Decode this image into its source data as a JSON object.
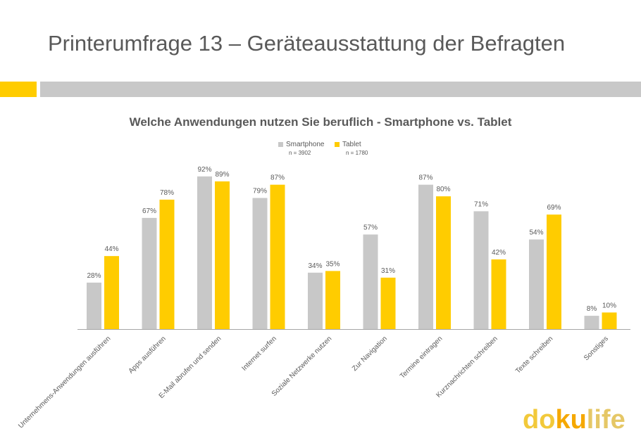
{
  "slide": {
    "title": "Printerumfrage 13 – Geräteausstattung der Befragten"
  },
  "colors": {
    "smartphone": "#c8c8c8",
    "tablet": "#ffcc00",
    "band_gray": "#c8c8c8",
    "band_yellow": "#ffcc00",
    "axis": "#a6a6a6",
    "text": "#595959"
  },
  "logo": {
    "part1": "do",
    "part2": "ku",
    "part3": "life",
    "color1": "#f2c93a",
    "color2": "#f5a800",
    "color3": "#e5c766"
  },
  "chart_data": {
    "type": "bar",
    "title": "Welche Anwendungen nutzen Sie beruflich - Smartphone vs. Tablet",
    "categories": [
      "Unternehmens-Anwendungen ausführen",
      "Apps ausführen",
      "E-Mail abrufen und senden",
      "Internet surfen",
      "Soziale Netzwerke nutzen",
      "Zur Navigation",
      "Termine eintragen",
      "Kurznachrichten schreiben",
      "Texte schreiben",
      "Sonstiges"
    ],
    "series": [
      {
        "name": "Smartphone",
        "n": "n = 3902",
        "values": [
          28,
          67,
          92,
          79,
          34,
          57,
          87,
          71,
          54,
          8
        ]
      },
      {
        "name": "Tablet",
        "n": "n = 1780",
        "values": [
          44,
          78,
          89,
          87,
          35,
          31,
          80,
          42,
          69,
          10
        ]
      }
    ],
    "value_suffix": "%",
    "ylim": [
      0,
      100
    ],
    "legend_position": "top-center",
    "grid": false
  }
}
